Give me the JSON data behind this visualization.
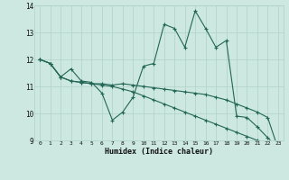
{
  "xlabel": "Humidex (Indice chaleur)",
  "x": [
    0,
    1,
    2,
    3,
    4,
    5,
    6,
    7,
    8,
    9,
    10,
    11,
    12,
    13,
    14,
    15,
    16,
    17,
    18,
    19,
    20,
    21,
    22,
    23
  ],
  "line1": [
    12.0,
    11.85,
    11.35,
    11.65,
    11.2,
    11.15,
    10.75,
    9.75,
    10.05,
    10.6,
    11.75,
    11.85,
    13.3,
    13.15,
    12.45,
    13.8,
    13.15,
    12.45,
    12.7,
    9.9,
    9.85,
    9.5,
    9.1,
    8.7
  ],
  "line2": [
    12.0,
    11.85,
    11.35,
    11.2,
    11.15,
    11.1,
    11.1,
    11.05,
    11.1,
    11.05,
    11.0,
    10.95,
    10.9,
    10.85,
    10.8,
    10.75,
    10.7,
    10.6,
    10.5,
    10.35,
    10.2,
    10.05,
    9.85,
    8.7
  ],
  "line3": [
    12.0,
    11.85,
    11.35,
    11.2,
    11.15,
    11.1,
    11.05,
    11.0,
    10.9,
    10.8,
    10.65,
    10.5,
    10.35,
    10.2,
    10.05,
    9.9,
    9.75,
    9.6,
    9.45,
    9.3,
    9.15,
    9.0,
    8.85,
    8.7
  ],
  "bg_color": "#cce8e0",
  "grid_color": "#b0d0c8",
  "line_color": "#226655",
  "ylim": [
    9,
    14
  ],
  "yticks": [
    9,
    10,
    11,
    12,
    13,
    14
  ],
  "xticks": [
    0,
    1,
    2,
    3,
    4,
    5,
    6,
    7,
    8,
    9,
    10,
    11,
    12,
    13,
    14,
    15,
    16,
    17,
    18,
    19,
    20,
    21,
    22,
    23
  ]
}
